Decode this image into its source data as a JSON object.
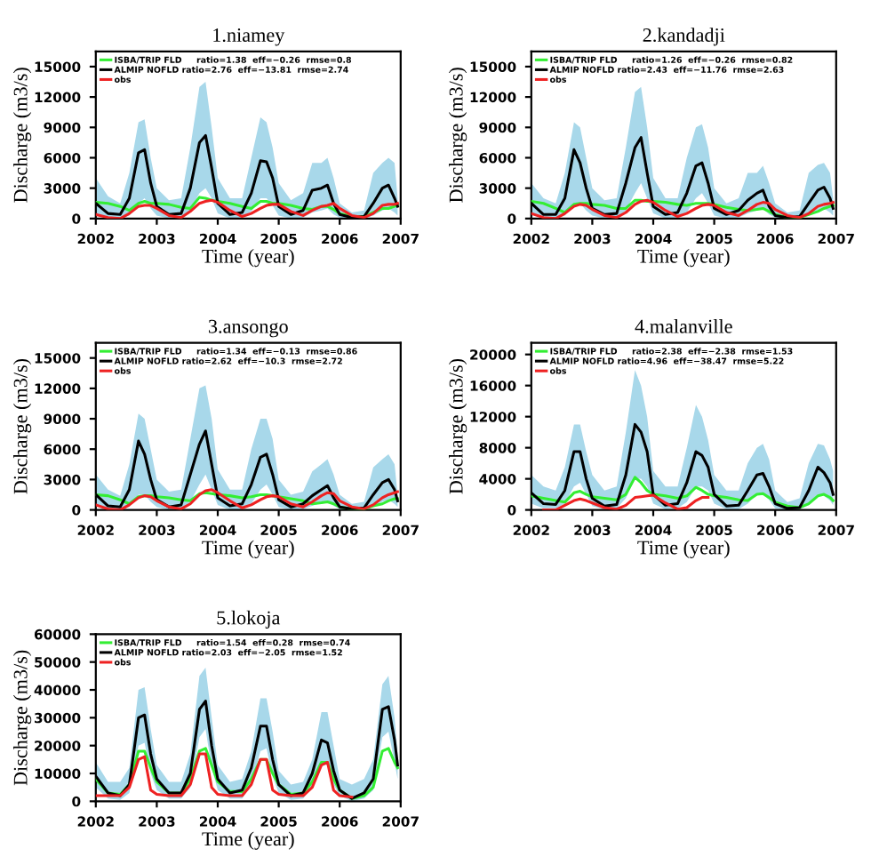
{
  "chart_data": [
    {
      "type": "line",
      "title": "1.niamey",
      "xlabel": "Time (year)",
      "ylabel": "Discharge (m3/s)",
      "xlim": [
        2002,
        2007
      ],
      "xticks": [
        2002,
        2003,
        2004,
        2005,
        2006,
        2007
      ],
      "ylim": [
        0,
        16500
      ],
      "yticks": [
        0,
        3000,
        6000,
        9000,
        12000,
        15000
      ],
      "legend": "top left",
      "grid": false,
      "x": [
        2002,
        2002.2,
        2002.4,
        2002.55,
        2002.7,
        2002.8,
        2002.9,
        2003,
        2003.2,
        2003.4,
        2003.55,
        2003.7,
        2003.8,
        2003.9,
        2004,
        2004.2,
        2004.4,
        2004.55,
        2004.7,
        2004.8,
        2004.9,
        2005,
        2005.2,
        2005.4,
        2005.55,
        2005.7,
        2005.8,
        2005.9,
        2006,
        2006.2,
        2006.4,
        2006.55,
        2006.7,
        2006.8,
        2006.9,
        2006.95
      ],
      "series": [
        {
          "name": "ISBA/TRIP FLD     ratio=1.38  eff=−0.26  rmse=0.8",
          "color": "#33ee33",
          "values": [
            1600,
            1500,
            1200,
            800,
            1500,
            1700,
            1500,
            1500,
            1400,
            1100,
            1000,
            2100,
            2000,
            1800,
            1700,
            1500,
            1200,
            1000,
            1700,
            1700,
            1500,
            1500,
            1300,
            1000,
            900,
            1200,
            1200,
            900,
            500,
            200,
            200,
            600,
            1000,
            1000,
            1200,
            1300
          ]
        },
        {
          "name": "ALMIP NOFLD ratio=2.76  eff=−13.81  rmse=2.74",
          "color": "#000000",
          "values": [
            1500,
            500,
            400,
            2000,
            6500,
            6800,
            3500,
            1200,
            400,
            500,
            3000,
            7500,
            8200,
            5000,
            1500,
            400,
            600,
            2500,
            5700,
            5600,
            4000,
            1200,
            400,
            800,
            2800,
            3000,
            3300,
            1500,
            400,
            100,
            200,
            1500,
            3000,
            3300,
            2000,
            1200
          ],
          "upper": [
            4000,
            2200,
            1500,
            4500,
            9500,
            9800,
            6000,
            3000,
            1800,
            2000,
            7000,
            13000,
            13500,
            9000,
            4000,
            2000,
            2000,
            6000,
            10000,
            9500,
            7000,
            3500,
            1800,
            2500,
            5500,
            5500,
            6000,
            4000,
            1500,
            600,
            800,
            4500,
            5500,
            6000,
            5500,
            2000
          ],
          "lower": [
            500,
            100,
            0,
            300,
            1500,
            2000,
            1000,
            300,
            0,
            0,
            800,
            2500,
            3000,
            2000,
            500,
            0,
            100,
            700,
            2000,
            2000,
            1300,
            300,
            0,
            100,
            600,
            800,
            1000,
            400,
            100,
            0,
            0,
            300,
            800,
            1000,
            600,
            300
          ]
        },
        {
          "name": "obs",
          "color": "#ee2222",
          "values": [
            400,
            100,
            0,
            500,
            1200,
            1300,
            1300,
            1000,
            300,
            100,
            700,
            1500,
            1700,
            1800,
            1600,
            800,
            200,
            500,
            1000,
            1300,
            1400,
            1400,
            700,
            300,
            800,
            1200,
            1300,
            1500,
            1000,
            300,
            100,
            500,
            1300,
            1400,
            1400,
            1500
          ]
        }
      ]
    },
    {
      "type": "line",
      "title": "2.kandadji",
      "xlabel": "Time (year)",
      "ylabel": "Discharge (m3/s)",
      "xlim": [
        2002,
        2007
      ],
      "xticks": [
        2002,
        2003,
        2004,
        2005,
        2006,
        2007
      ],
      "ylim": [
        0,
        16500
      ],
      "yticks": [
        0,
        3000,
        6000,
        9000,
        12000,
        15000
      ],
      "legend": "top left",
      "grid": false,
      "x": [
        2002,
        2002.2,
        2002.4,
        2002.55,
        2002.7,
        2002.8,
        2002.9,
        2003,
        2003.2,
        2003.4,
        2003.55,
        2003.7,
        2003.8,
        2003.9,
        2004,
        2004.2,
        2004.4,
        2004.55,
        2004.7,
        2004.8,
        2004.9,
        2005,
        2005.2,
        2005.4,
        2005.55,
        2005.7,
        2005.8,
        2005.9,
        2006,
        2006.2,
        2006.4,
        2006.55,
        2006.7,
        2006.8,
        2006.9,
        2006.95
      ],
      "series": [
        {
          "name": "ISBA/TRIP FLD     ratio=1.26  eff=−0.26  rmse=0.82",
          "color": "#33ee33",
          "values": [
            1700,
            1500,
            1000,
            600,
            1400,
            1500,
            1500,
            1400,
            1300,
            1000,
            1000,
            1800,
            1800,
            1700,
            1700,
            1600,
            1400,
            1300,
            1500,
            1500,
            1500,
            1400,
            1100,
            900,
            800,
            900,
            1000,
            700,
            400,
            100,
            100,
            400,
            700,
            1000,
            1200,
            1300
          ]
        },
        {
          "name": "ALMIP NOFLD ratio=2.43  eff=−11.76  rmse=2.63",
          "color": "#000000",
          "values": [
            1500,
            400,
            400,
            2000,
            6800,
            5500,
            3000,
            1000,
            400,
            500,
            3500,
            7000,
            8000,
            4500,
            1200,
            400,
            600,
            2500,
            5200,
            5500,
            3500,
            1000,
            400,
            800,
            1800,
            2500,
            2800,
            1200,
            300,
            100,
            200,
            1500,
            2800,
            3100,
            2000,
            1000
          ],
          "upper": [
            3500,
            2000,
            1500,
            4500,
            9500,
            9000,
            6000,
            3000,
            1800,
            2000,
            7000,
            12500,
            13000,
            9000,
            4000,
            2000,
            2000,
            6000,
            9000,
            9300,
            7000,
            3000,
            1500,
            2000,
            4500,
            4500,
            5200,
            3500,
            1500,
            600,
            800,
            4500,
            5300,
            5500,
            4500,
            2000
          ],
          "lower": [
            500,
            100,
            0,
            300,
            1500,
            1500,
            800,
            300,
            0,
            0,
            800,
            2500,
            3500,
            2000,
            500,
            0,
            0,
            600,
            2000,
            2500,
            1500,
            300,
            0,
            100,
            500,
            800,
            1000,
            400,
            100,
            0,
            0,
            300,
            800,
            1000,
            600,
            300
          ]
        },
        {
          "name": "obs",
          "color": "#ee2222",
          "values": [
            500,
            100,
            0,
            500,
            1200,
            1400,
            1300,
            900,
            300,
            100,
            600,
            1400,
            1700,
            1800,
            1600,
            800,
            200,
            500,
            1000,
            1300,
            1400,
            1300,
            600,
            300,
            800,
            1400,
            1600,
            1500,
            900,
            300,
            100,
            500,
            1200,
            1400,
            1500,
            1600
          ]
        }
      ]
    },
    {
      "type": "line",
      "title": "3.ansongo",
      "xlabel": "Time (year)",
      "ylabel": "Discharge (m3/s)",
      "xlim": [
        2002,
        2007
      ],
      "xticks": [
        2002,
        2003,
        2004,
        2005,
        2006,
        2007
      ],
      "ylim": [
        0,
        16500
      ],
      "yticks": [
        0,
        3000,
        6000,
        9000,
        12000,
        15000
      ],
      "legend": "top left",
      "grid": false,
      "x": [
        2002,
        2002.2,
        2002.4,
        2002.55,
        2002.7,
        2002.8,
        2002.9,
        2003,
        2003.2,
        2003.4,
        2003.55,
        2003.7,
        2003.8,
        2003.9,
        2004,
        2004.2,
        2004.4,
        2004.55,
        2004.7,
        2004.8,
        2004.9,
        2005,
        2005.2,
        2005.4,
        2005.55,
        2005.7,
        2005.8,
        2005.9,
        2006,
        2006.2,
        2006.4,
        2006.55,
        2006.7,
        2006.8,
        2006.9,
        2006.95
      ],
      "series": [
        {
          "name": "ISBA/TRIP FLD     ratio=1.34  eff=−0.13  rmse=0.86",
          "color": "#33ee33",
          "values": [
            1500,
            1400,
            1000,
            600,
            1300,
            1400,
            1400,
            1300,
            1200,
            1000,
            900,
            1600,
            1700,
            1600,
            1500,
            1400,
            1200,
            1300,
            1500,
            1500,
            1400,
            1300,
            1100,
            900,
            600,
            700,
            800,
            600,
            300,
            100,
            100,
            400,
            600,
            900,
            1100,
            1100
          ]
        },
        {
          "name": "ALMIP NOFLD ratio=2.62  eff=−10.3  rmse=2.72",
          "color": "#000000",
          "values": [
            1500,
            400,
            300,
            2000,
            6800,
            5500,
            3000,
            1000,
            300,
            500,
            3500,
            6500,
            7800,
            4500,
            1200,
            400,
            600,
            2500,
            5200,
            5500,
            3500,
            1000,
            300,
            600,
            1400,
            2000,
            2400,
            1200,
            300,
            100,
            200,
            1500,
            2700,
            3000,
            2000,
            900
          ],
          "upper": [
            3500,
            2000,
            1400,
            4500,
            9500,
            9000,
            6000,
            3000,
            1800,
            2000,
            7000,
            12000,
            12300,
            9000,
            4000,
            2000,
            2000,
            6000,
            9000,
            9000,
            7000,
            3000,
            1500,
            1800,
            3800,
            4500,
            5000,
            3500,
            1500,
            600,
            800,
            4200,
            5000,
            5500,
            4500,
            1500
          ],
          "lower": [
            500,
            100,
            0,
            300,
            1500,
            1500,
            800,
            300,
            0,
            0,
            800,
            2500,
            3500,
            2000,
            500,
            0,
            0,
            600,
            2000,
            2500,
            1500,
            300,
            0,
            100,
            400,
            700,
            900,
            400,
            100,
            0,
            0,
            300,
            800,
            1000,
            600,
            300
          ]
        },
        {
          "name": "obs",
          "color": "#ee2222",
          "values": [
            500,
            100,
            0,
            500,
            1200,
            1400,
            1300,
            900,
            300,
            100,
            600,
            1500,
            1900,
            2000,
            1700,
            900,
            200,
            500,
            1000,
            1300,
            1400,
            1300,
            600,
            300,
            800,
            1400,
            1700,
            1600,
            900,
            300,
            100,
            500,
            1200,
            1500,
            1700,
            1800
          ]
        }
      ]
    },
    {
      "type": "line",
      "title": "4.malanville",
      "xlabel": "Time (year)",
      "ylabel": "Discharge (m3/s)",
      "xlim": [
        2002,
        2007
      ],
      "xticks": [
        2002,
        2003,
        2004,
        2005,
        2006,
        2007
      ],
      "ylim": [
        0,
        21500
      ],
      "yticks": [
        0,
        4000,
        8000,
        12000,
        16000,
        20000
      ],
      "legend": "top left",
      "grid": false,
      "x": [
        2002,
        2002.2,
        2002.4,
        2002.55,
        2002.7,
        2002.8,
        2002.9,
        2003,
        2003.2,
        2003.4,
        2003.55,
        2003.7,
        2003.8,
        2003.9,
        2004,
        2004.2,
        2004.4,
        2004.55,
        2004.7,
        2004.8,
        2004.9,
        2005,
        2005.2,
        2005.4,
        2005.55,
        2005.7,
        2005.8,
        2005.9,
        2006,
        2006.2,
        2006.4,
        2006.55,
        2006.7,
        2006.8,
        2006.9,
        2006.95
      ],
      "series": [
        {
          "name": "ISBA/TRIP FLD     ratio=2.38  eff=−2.38  rmse=1.53",
          "color": "#33ee33",
          "values": [
            1800,
            1500,
            1200,
            1000,
            2200,
            2400,
            2000,
            1700,
            1500,
            1300,
            2000,
            4200,
            3500,
            2500,
            2000,
            1800,
            1500,
            1800,
            2900,
            2500,
            2000,
            1800,
            1600,
            1300,
            1200,
            2000,
            2100,
            1600,
            1000,
            500,
            300,
            800,
            1800,
            2000,
            1600,
            1200
          ]
        },
        {
          "name": "ALMIP NOFLD ratio=4.96  eff=−38.47  rmse=5.22",
          "color": "#000000",
          "values": [
            2200,
            800,
            700,
            2500,
            7500,
            7500,
            4000,
            1500,
            500,
            700,
            4500,
            11000,
            10000,
            7500,
            2000,
            600,
            800,
            3500,
            7500,
            7000,
            5500,
            2000,
            500,
            600,
            2500,
            4500,
            4700,
            3000,
            800,
            200,
            300,
            2500,
            5500,
            4800,
            3500,
            2000
          ],
          "upper": [
            4500,
            3000,
            2500,
            5500,
            11000,
            11000,
            7500,
            4500,
            2500,
            3000,
            10000,
            18000,
            16000,
            12000,
            5000,
            3000,
            3000,
            8000,
            13500,
            12000,
            9000,
            4500,
            2500,
            2500,
            6000,
            8000,
            8500,
            6500,
            2500,
            1000,
            1500,
            6000,
            8500,
            8300,
            6500,
            5000
          ],
          "lower": [
            800,
            200,
            200,
            800,
            3000,
            3500,
            2000,
            500,
            100,
            200,
            1500,
            4000,
            4000,
            3000,
            800,
            100,
            200,
            1000,
            3000,
            3000,
            2500,
            800,
            100,
            100,
            800,
            2000,
            2000,
            1300,
            200,
            0,
            100,
            600,
            2000,
            1800,
            1200,
            600
          ]
        },
        {
          "name": "obs",
          "color": "#ee2222",
          "values": [
            null,
            0,
            0,
            600,
            1200,
            1400,
            1200,
            900,
            300,
            100,
            600,
            1600,
            1700,
            1800,
            1900,
            900,
            100,
            300,
            1200,
            1600,
            1600,
            null,
            null,
            null,
            null,
            null,
            null,
            null,
            null,
            null,
            null,
            null,
            null,
            null,
            null,
            null
          ]
        }
      ]
    },
    {
      "type": "line",
      "title": "5.lokoja",
      "xlabel": "Time (year)",
      "ylabel": "Discharge (m3/s)",
      "xlim": [
        2002,
        2007
      ],
      "xticks": [
        2002,
        2003,
        2004,
        2005,
        2006,
        2007
      ],
      "ylim": [
        0,
        60000
      ],
      "yticks": [
        0,
        10000,
        20000,
        30000,
        40000,
        50000,
        60000
      ],
      "legend": "top left",
      "grid": false,
      "x": [
        2002,
        2002.2,
        2002.4,
        2002.55,
        2002.7,
        2002.8,
        2002.9,
        2003,
        2003.2,
        2003.4,
        2003.55,
        2003.7,
        2003.8,
        2003.9,
        2004,
        2004.2,
        2004.4,
        2004.55,
        2004.7,
        2004.8,
        2004.9,
        2005,
        2005.2,
        2005.4,
        2005.55,
        2005.7,
        2005.8,
        2005.9,
        2006,
        2006.2,
        2006.4,
        2006.55,
        2006.7,
        2006.8,
        2006.9,
        2006.95
      ],
      "series": [
        {
          "name": "ISBA/TRIP FLD     ratio=1.54  eff=0.28  rmse=0.74",
          "color": "#33ee33",
          "values": [
            8000,
            3000,
            2500,
            6000,
            18000,
            18000,
            12000,
            7000,
            3000,
            3000,
            8000,
            18000,
            19000,
            13000,
            7000,
            3500,
            3500,
            8000,
            15000,
            15000,
            10000,
            6000,
            2500,
            3000,
            7000,
            14000,
            14000,
            8000,
            4000,
            1000,
            2000,
            5000,
            18000,
            19000,
            14000,
            12000
          ]
        },
        {
          "name": "ALMIP NOFLD ratio=2.03  eff=−2.05  rmse=1.52",
          "color": "#000000",
          "values": [
            9000,
            3000,
            2000,
            6000,
            30000,
            31000,
            17000,
            8000,
            3000,
            3000,
            10000,
            33000,
            36000,
            20000,
            8000,
            3000,
            4000,
            12000,
            27000,
            27000,
            15000,
            6000,
            2000,
            3000,
            10000,
            22000,
            21000,
            11000,
            4000,
            1000,
            3000,
            8000,
            33000,
            34000,
            22000,
            13000
          ],
          "upper": [
            14000,
            7000,
            7000,
            12000,
            40000,
            41000,
            26000,
            13000,
            7000,
            7000,
            17000,
            45000,
            48000,
            30000,
            13000,
            7000,
            8000,
            18000,
            37000,
            37000,
            25000,
            11000,
            6000,
            7000,
            15000,
            32000,
            32000,
            20000,
            8000,
            6000,
            8000,
            15000,
            42000,
            45000,
            30000,
            17000
          ],
          "lower": [
            5000,
            1000,
            500,
            3000,
            20000,
            21000,
            10000,
            4000,
            1000,
            1000,
            5000,
            23000,
            26000,
            12000,
            4000,
            1000,
            1000,
            6000,
            18000,
            19000,
            9000,
            3000,
            500,
            1000,
            5000,
            13000,
            13000,
            6000,
            2000,
            0,
            1000,
            4000,
            23000,
            25000,
            14000,
            8000
          ]
        },
        {
          "name": "obs",
          "color": "#ee2222",
          "values": [
            2000,
            2000,
            2000,
            5000,
            15000,
            16000,
            4000,
            2500,
            2000,
            2000,
            6000,
            17000,
            17000,
            5000,
            2500,
            2000,
            2000,
            6000,
            15000,
            15000,
            4000,
            2500,
            2000,
            2000,
            5000,
            13000,
            14000,
            4000,
            2000,
            1500,
            null,
            null,
            null,
            null,
            null,
            null
          ]
        }
      ]
    }
  ]
}
